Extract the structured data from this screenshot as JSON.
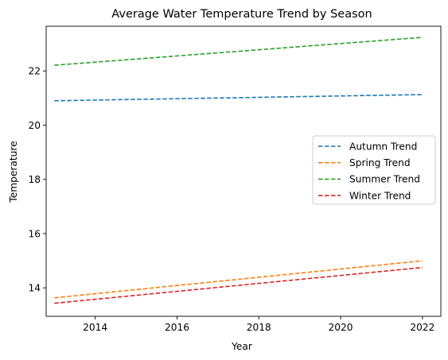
{
  "chart_data": {
    "type": "line",
    "title": "Average Water Temperature Trend by Season",
    "xlabel": "Year",
    "ylabel": "Temperature",
    "xlim": [
      2012.8,
      2022.45
    ],
    "ylim": [
      12.95,
      23.65
    ],
    "xticks": [
      2014,
      2016,
      2018,
      2020,
      2022
    ],
    "yticks": [
      14,
      16,
      18,
      20,
      22
    ],
    "grid": false,
    "legend_position": "center-right",
    "series": [
      {
        "name": "Autumn Trend",
        "color": "#1f77b4",
        "linestyle": "dashed",
        "x": [
          2013,
          2022
        ],
        "y": [
          20.9,
          21.13
        ]
      },
      {
        "name": "Spring Trend",
        "color": "#ff7f0e",
        "linestyle": "dashed",
        "x": [
          2013,
          2022
        ],
        "y": [
          13.63,
          15.0
        ]
      },
      {
        "name": "Summer Trend",
        "color": "#2ca02c",
        "linestyle": "dashed",
        "x": [
          2013,
          2022
        ],
        "y": [
          22.21,
          23.24
        ]
      },
      {
        "name": "Winter Trend",
        "color": "#d62728",
        "linestyle": "dashed",
        "x": [
          2013,
          2022
        ],
        "y": [
          13.43,
          14.75
        ]
      }
    ]
  }
}
